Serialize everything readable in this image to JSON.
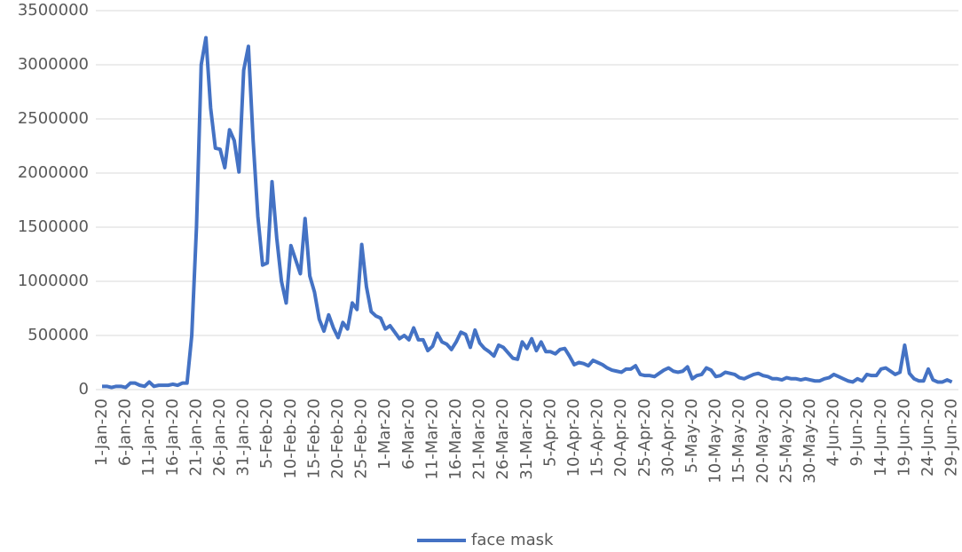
{
  "chart_data": {
    "type": "line",
    "categories": [
      "1-Jan-20",
      null,
      null,
      null,
      null,
      "6-Jan-20",
      null,
      null,
      null,
      null,
      "11-Jan-20",
      null,
      null,
      null,
      null,
      "16-Jan-20",
      null,
      null,
      null,
      null,
      "21-Jan-20",
      null,
      null,
      null,
      null,
      "26-Jan-20",
      null,
      null,
      null,
      null,
      "31-Jan-20",
      null,
      null,
      null,
      null,
      "5-Feb-20",
      null,
      null,
      null,
      null,
      "10-Feb-20",
      null,
      null,
      null,
      null,
      "15-Feb-20",
      null,
      null,
      null,
      null,
      "20-Feb-20",
      null,
      null,
      null,
      null,
      "25-Feb-20",
      null,
      null,
      null,
      null,
      "1-Mar-20",
      null,
      null,
      null,
      null,
      "6-Mar-20",
      null,
      null,
      null,
      null,
      "11-Mar-20",
      null,
      null,
      null,
      null,
      "16-Mar-20",
      null,
      null,
      null,
      null,
      "21-Mar-20",
      null,
      null,
      null,
      null,
      "26-Mar-20",
      null,
      null,
      null,
      null,
      "31-Mar-20",
      null,
      null,
      null,
      null,
      "5-Apr-20",
      null,
      null,
      null,
      null,
      "10-Apr-20",
      null,
      null,
      null,
      null,
      "15-Apr-20",
      null,
      null,
      null,
      null,
      "20-Apr-20",
      null,
      null,
      null,
      null,
      "25-Apr-20",
      null,
      null,
      null,
      null,
      "30-Apr-20",
      null,
      null,
      null,
      null,
      "5-May-20",
      null,
      null,
      null,
      null,
      "10-May-20",
      null,
      null,
      null,
      null,
      "15-May-20",
      null,
      null,
      null,
      null,
      "20-May-20",
      null,
      null,
      null,
      null,
      "25-May-20",
      null,
      null,
      null,
      null,
      "30-May-20",
      null,
      null,
      null,
      null,
      "4-Jun-20",
      null,
      null,
      null,
      null,
      "9-Jun-20",
      null,
      null,
      null,
      null,
      "14-Jun-20",
      null,
      null,
      null,
      null,
      "19-Jun-20",
      null,
      null,
      null,
      null,
      "24-Jun-20",
      null,
      null,
      null,
      null,
      "29-Jun-20"
    ],
    "series": [
      {
        "name": "face mask",
        "color": "#4472c4",
        "values": [
          30000,
          30000,
          20000,
          30000,
          30000,
          20000,
          60000,
          60000,
          40000,
          30000,
          70000,
          30000,
          40000,
          40000,
          40000,
          50000,
          40000,
          60000,
          60000,
          500000,
          1500000,
          3000000,
          3250000,
          2600000,
          2230000,
          2220000,
          2050000,
          2400000,
          2300000,
          2010000,
          2950000,
          3170000,
          2300000,
          1600000,
          1150000,
          1170000,
          1920000,
          1400000,
          1000000,
          800000,
          1330000,
          1200000,
          1070000,
          1580000,
          1050000,
          900000,
          650000,
          540000,
          690000,
          570000,
          480000,
          620000,
          560000,
          800000,
          740000,
          1340000,
          950000,
          720000,
          680000,
          660000,
          560000,
          590000,
          530000,
          470000,
          500000,
          460000,
          570000,
          460000,
          460000,
          360000,
          400000,
          520000,
          440000,
          420000,
          370000,
          440000,
          530000,
          510000,
          390000,
          550000,
          430000,
          380000,
          350000,
          310000,
          410000,
          390000,
          340000,
          290000,
          280000,
          440000,
          380000,
          470000,
          360000,
          440000,
          350000,
          350000,
          330000,
          370000,
          380000,
          310000,
          230000,
          250000,
          240000,
          220000,
          270000,
          250000,
          230000,
          200000,
          180000,
          170000,
          160000,
          190000,
          190000,
          220000,
          140000,
          130000,
          130000,
          120000,
          150000,
          180000,
          200000,
          170000,
          160000,
          170000,
          210000,
          100000,
          130000,
          140000,
          200000,
          180000,
          120000,
          130000,
          160000,
          150000,
          140000,
          110000,
          100000,
          120000,
          140000,
          150000,
          130000,
          120000,
          100000,
          100000,
          90000,
          110000,
          100000,
          100000,
          90000,
          100000,
          90000,
          80000,
          80000,
          100000,
          110000,
          140000,
          120000,
          100000,
          80000,
          70000,
          100000,
          80000,
          140000,
          130000,
          130000,
          190000,
          200000,
          170000,
          140000,
          160000,
          410000,
          150000,
          100000,
          80000,
          80000,
          190000,
          90000,
          70000,
          70000,
          90000,
          70000
        ]
      }
    ],
    "ylim": [
      0,
      3500000
    ],
    "yticks": [
      0,
      500000,
      1000000,
      1500000,
      2000000,
      2500000,
      3000000,
      3500000
    ],
    "grid": true,
    "legend": "bottom"
  }
}
